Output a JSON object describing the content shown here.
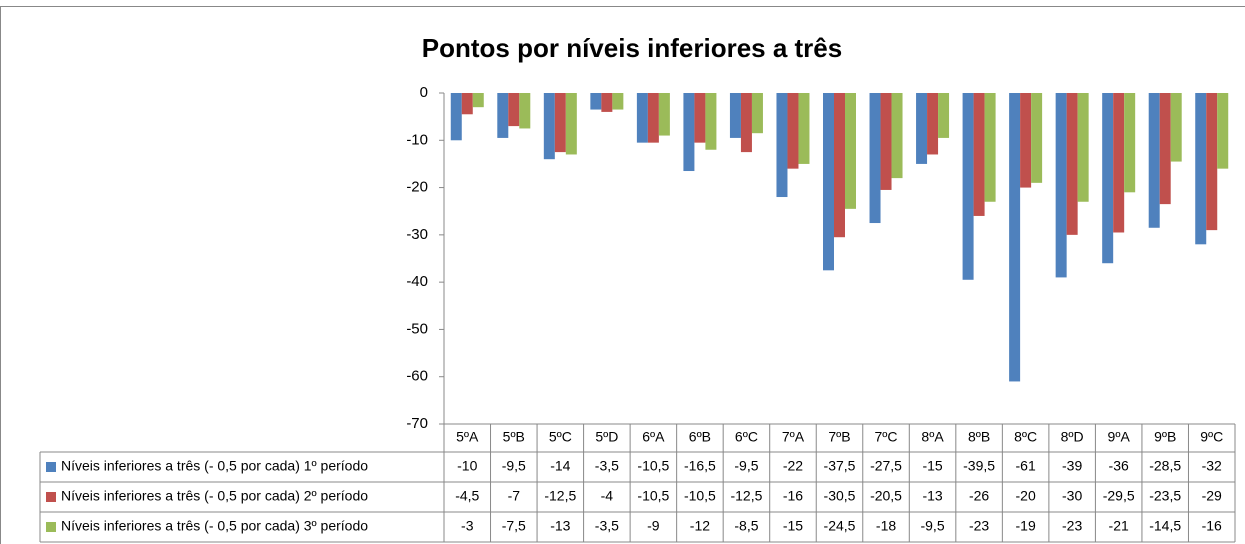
{
  "chart_data": {
    "type": "bar",
    "title": "Pontos por níveis inferiores a três",
    "categories": [
      "5ºA",
      "5ºB",
      "5ºC",
      "5ºD",
      "6ºA",
      "6ºB",
      "6ºC",
      "7ºA",
      "7ºB",
      "7ºC",
      "8ºA",
      "8ºB",
      "8ºC",
      "8ºD",
      "9ºA",
      "9ºB",
      "9ºC"
    ],
    "series": [
      {
        "name": "Níveis inferiores a três (- 0,5 por cada) 1º período",
        "color": "#4f81bd",
        "values": [
          -10,
          -9.5,
          -14,
          -3.5,
          -10.5,
          -16.5,
          -9.5,
          -22,
          -37.5,
          -27.5,
          -15,
          -39.5,
          -61,
          -39,
          -36,
          -28.5,
          -32
        ],
        "value_labels": [
          "-10",
          "-9,5",
          "-14",
          "-3,5",
          "-10,5",
          "-16,5",
          "-9,5",
          "-22",
          "-37,5",
          "-27,5",
          "-15",
          "-39,5",
          "-61",
          "-39",
          "-36",
          "-28,5",
          "-32"
        ]
      },
      {
        "name": "Níveis inferiores a três (- 0,5 por cada) 2º período",
        "color": "#c0504d",
        "values": [
          -4.5,
          -7,
          -12.5,
          -4,
          -10.5,
          -10.5,
          -12.5,
          -16,
          -30.5,
          -20.5,
          -13,
          -26,
          -20,
          -30,
          -29.5,
          -23.5,
          -29
        ],
        "value_labels": [
          "-4,5",
          "-7",
          "-12,5",
          "-4",
          "-10,5",
          "-10,5",
          "-12,5",
          "-16",
          "-30,5",
          "-20,5",
          "-13",
          "-26",
          "-20",
          "-30",
          "-29,5",
          "-23,5",
          "-29"
        ]
      },
      {
        "name": "Níveis inferiores a três (- 0,5 por cada) 3º período",
        "color": "#9bbb59",
        "values": [
          -3,
          -7.5,
          -13,
          -3.5,
          -9,
          -12,
          -8.5,
          -15,
          -24.5,
          -18,
          -9.5,
          -23,
          -19,
          -23,
          -21,
          -14.5,
          -16
        ],
        "value_labels": [
          "-3",
          "-7,5",
          "-13",
          "-3,5",
          "-9",
          "-12",
          "-8,5",
          "-15",
          "-24,5",
          "-18",
          "-9,5",
          "-23",
          "-19",
          "-23",
          "-21",
          "-14,5",
          "-16"
        ]
      }
    ],
    "ylim": [
      -70,
      0
    ],
    "yticks": [
      0,
      -10,
      -20,
      -30,
      -40,
      -50,
      -60,
      -70
    ]
  }
}
